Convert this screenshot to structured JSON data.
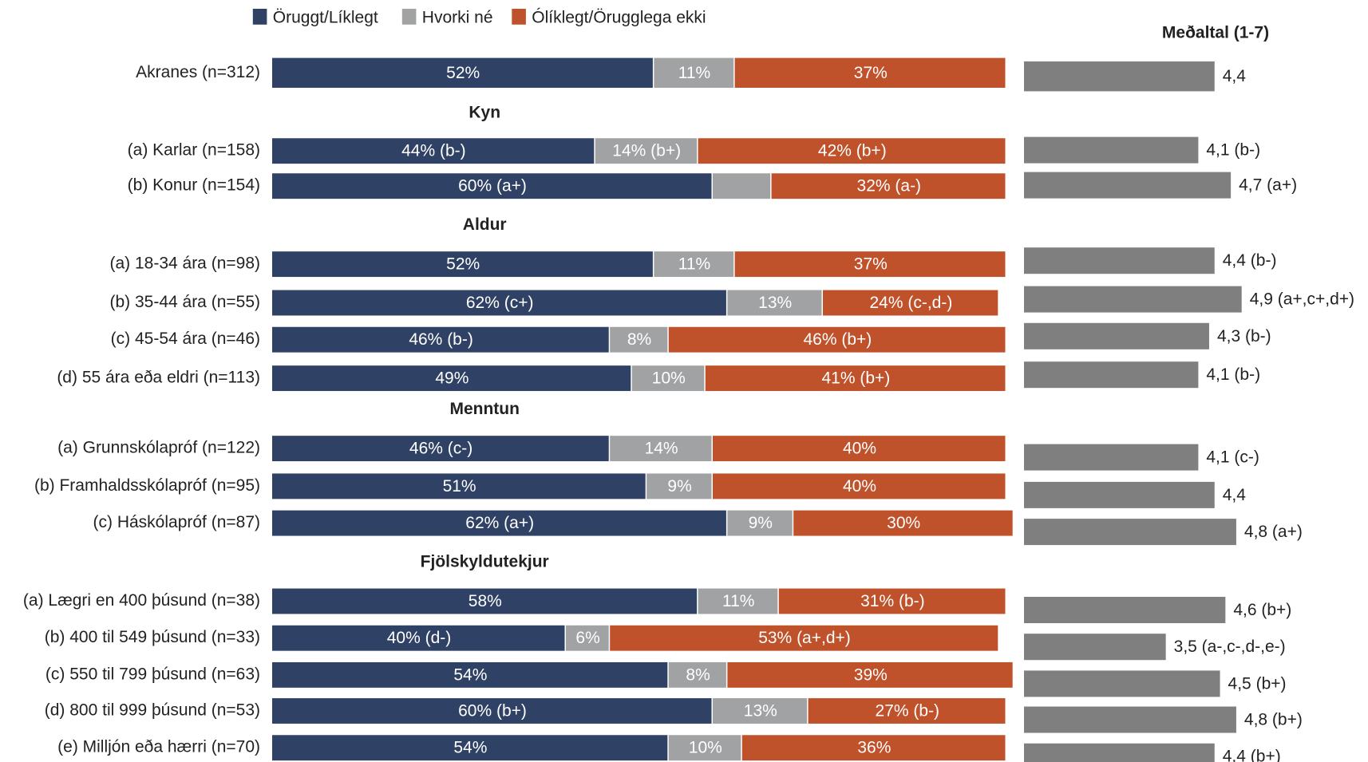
{
  "chart_data": {
    "type": "stacked_bar",
    "series": [
      {
        "name": "Öruggt/Líklegt",
        "color": "#2f4164"
      },
      {
        "name": "Hvorki né",
        "color": "#a0a2a4"
      },
      {
        "name": "Ólíklegt/Örugglega ekki",
        "color": "#c0522b"
      }
    ],
    "xlim": [
      0,
      100
    ],
    "mean_title": "Meðaltal (1-7)",
    "mean_color": "#7f7f7f",
    "mean_xlim": [
      0,
      7
    ],
    "groups": [
      {
        "rows": [
          {
            "label": "Akranes (n=312)",
            "values": [
              52,
              11,
              37
            ],
            "value_labels": [
              "52%",
              "11%",
              "37%"
            ],
            "mean": 4.4,
            "mean_label": "4,4"
          }
        ]
      },
      {
        "heading": "Kyn",
        "rows": [
          {
            "label": "(a) Karlar (n=158)",
            "values": [
              44,
              14,
              42
            ],
            "value_labels": [
              "44% (b-)",
              "14% (b+)",
              "42% (b+)"
            ],
            "mean": 4.1,
            "mean_label": "4,1 (b-)"
          },
          {
            "label": "(b) Konur (n=154)",
            "values": [
              60,
              8,
              32
            ],
            "value_labels": [
              "60% (a+)",
              null,
              "32% (a-)"
            ],
            "mean": 4.7,
            "mean_label": "4,7 (a+)"
          }
        ]
      },
      {
        "heading": "Aldur",
        "rows": [
          {
            "label": "(a) 18-34 ára (n=98)",
            "values": [
              52,
              11,
              37
            ],
            "value_labels": [
              "52%",
              "11%",
              "37%"
            ],
            "mean": 4.4,
            "mean_label": "4,4 (b-)"
          },
          {
            "label": "(b) 35-44 ára (n=55)",
            "values": [
              62,
              13,
              24
            ],
            "value_labels": [
              "62% (c+)",
              "13%",
              "24% (c-,d-)"
            ],
            "mean": 4.9,
            "mean_label": "4,9 (a+,c+,d+)"
          },
          {
            "label": "(c) 45-54 ára (n=46)",
            "values": [
              46,
              8,
              46
            ],
            "value_labels": [
              "46% (b-)",
              "8%",
              "46% (b+)"
            ],
            "mean": 4.3,
            "mean_label": "4,3 (b-)"
          },
          {
            "label": "(d) 55 ára eða eldri (n=113)",
            "values": [
              49,
              10,
              41
            ],
            "value_labels": [
              "49%",
              "10%",
              "41% (b+)"
            ],
            "mean": 4.1,
            "mean_label": "4,1 (b-)"
          }
        ]
      },
      {
        "heading": "Menntun",
        "rows": [
          {
            "label": "(a) Grunnskólapróf (n=122)",
            "values": [
              46,
              14,
              40
            ],
            "value_labels": [
              "46% (c-)",
              "14%",
              "40%"
            ],
            "mean": 4.1,
            "mean_label": "4,1 (c-)"
          },
          {
            "label": "(b) Framhaldsskólapróf (n=95)",
            "values": [
              51,
              9,
              40
            ],
            "value_labels": [
              "51%",
              "9%",
              "40%"
            ],
            "mean": 4.4,
            "mean_label": "4,4"
          },
          {
            "label": "(c) Háskólapróf (n=87)",
            "values": [
              62,
              9,
              30
            ],
            "value_labels": [
              "62% (a+)",
              "9%",
              "30%"
            ],
            "mean": 4.8,
            "mean_label": "4,8 (a+)"
          }
        ]
      },
      {
        "heading": "Fjölskyldutekjur",
        "rows": [
          {
            "label": "(a) Lægri en 400 þúsund (n=38)",
            "values": [
              58,
              11,
              31
            ],
            "value_labels": [
              "58%",
              "11%",
              "31% (b-)"
            ],
            "mean": 4.6,
            "mean_label": "4,6 (b+)"
          },
          {
            "label": "(b) 400 til 549 þúsund (n=33)",
            "values": [
              40,
              6,
              53
            ],
            "value_labels": [
              "40% (d-)",
              "6%",
              "53% (a+,d+)"
            ],
            "mean": 3.5,
            "mean_label": "3,5 (a-,c-,d-,e-)"
          },
          {
            "label": "(c) 550 til 799 þúsund (n=63)",
            "values": [
              54,
              8,
              39
            ],
            "value_labels": [
              "54%",
              "8%",
              "39%"
            ],
            "mean": 4.5,
            "mean_label": "4,5 (b+)"
          },
          {
            "label": "(d) 800 til 999 þúsund (n=53)",
            "values": [
              60,
              13,
              27
            ],
            "value_labels": [
              "60% (b+)",
              "13%",
              "27% (b-)"
            ],
            "mean": 4.8,
            "mean_label": "4,8 (b+)"
          },
          {
            "label": "(e) Milljón eða hærri (n=70)",
            "values": [
              54,
              10,
              36
            ],
            "value_labels": [
              "54%",
              "10%",
              "36%"
            ],
            "mean": 4.4,
            "mean_label": "4,4 (b+)"
          }
        ]
      }
    ]
  }
}
